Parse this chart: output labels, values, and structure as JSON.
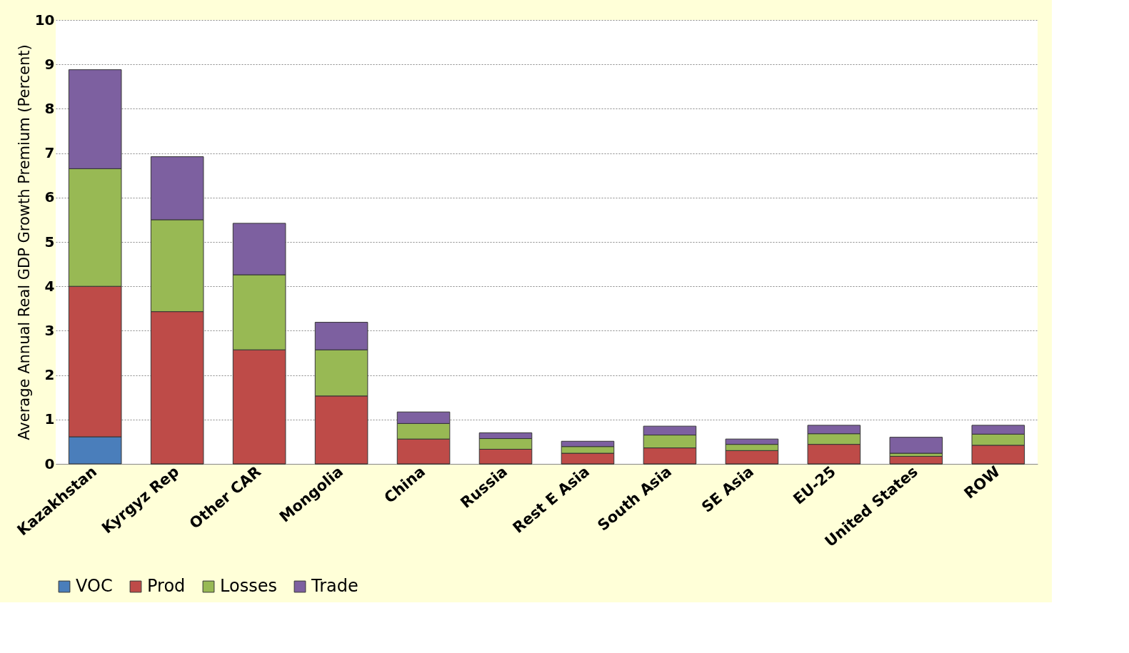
{
  "chart_data": {
    "type": "bar",
    "ylabel": "Average  Annual Real GDP Growth Premium (Percent)",
    "categories": [
      "Kazakhstan",
      "Kyrgyz Rep",
      "Other CAR",
      "Mongolia",
      "China",
      "Russia",
      "Rest E Asia",
      "South Asia",
      "SE Asia",
      "EU-25",
      "United States",
      "ROW"
    ],
    "stacked": true,
    "series": [
      {
        "name": "VOC",
        "color": "#4a7ebb",
        "values": [
          0.61,
          0,
          0,
          0,
          0,
          0,
          0,
          0,
          0,
          0,
          0,
          0
        ]
      },
      {
        "name": "Prod",
        "color": "#be4b48",
        "values": [
          3.39,
          3.43,
          2.57,
          1.53,
          0.56,
          0.33,
          0.24,
          0.36,
          0.3,
          0.44,
          0.17,
          0.42
        ]
      },
      {
        "name": "Losses",
        "color": "#98b954",
        "values": [
          2.65,
          2.07,
          1.69,
          1.04,
          0.35,
          0.24,
          0.15,
          0.29,
          0.14,
          0.24,
          0.07,
          0.25
        ]
      },
      {
        "name": "Trade",
        "color": "#7d60a0",
        "values": [
          2.23,
          1.42,
          1.16,
          0.62,
          0.26,
          0.13,
          0.12,
          0.2,
          0.12,
          0.19,
          0.36,
          0.2
        ]
      }
    ],
    "ylim": [
      0,
      10
    ],
    "yticks": [
      0,
      1,
      2,
      3,
      4,
      5,
      6,
      7,
      8,
      9,
      10
    ],
    "grid": "y",
    "legend": "bottom"
  }
}
